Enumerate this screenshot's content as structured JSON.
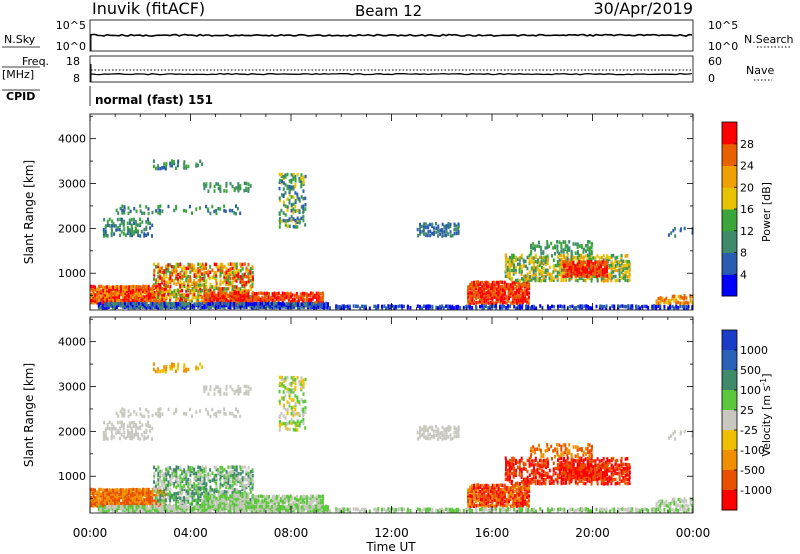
{
  "header": {
    "station": "Inuvik (fitACF)",
    "beam": "Beam 12",
    "date": "30/Apr/2019"
  },
  "panels": {
    "nsky": {
      "label": "N.Sky",
      "left_ticks": [
        "10^5",
        "10^0"
      ],
      "right_ticks": [
        "10^5",
        "10^0"
      ],
      "right_label": "N.Search"
    },
    "freq": {
      "label": "Freq.",
      "unit": "[MHz]",
      "left_ticks": [
        "18",
        "8"
      ],
      "right_ticks": [
        "60",
        "0"
      ],
      "right_label": "Nave"
    },
    "cpid": {
      "label": "CPID",
      "text": "normal (fast) 151"
    }
  },
  "chart_data": [
    {
      "type": "heatmap",
      "name": "power",
      "ylabel": "Slant Range [km]",
      "ylim": [
        180,
        4550
      ],
      "yticks": [
        "1000",
        "2000",
        "3000",
        "4000"
      ],
      "x_ticks": [
        "00:00",
        "04:00",
        "08:00",
        "12:00",
        "16:00",
        "20:00",
        "00:00"
      ],
      "xlim_hours": [
        0,
        24
      ],
      "colorbar": {
        "label": "Power [dB]",
        "ticks": [
          "4",
          "8",
          "12",
          "16",
          "20",
          "24",
          "28"
        ],
        "range": [
          0,
          32
        ],
        "colors": [
          "#0000ff",
          "#2a5db0",
          "#3e8a6a",
          "#3aa63a",
          "#e8c400",
          "#f0a000",
          "#e86000",
          "#ff0000"
        ]
      }
    },
    {
      "type": "heatmap",
      "name": "velocity",
      "ylabel": "Slant Range [km]",
      "ylim": [
        180,
        4550
      ],
      "yticks": [
        "1000",
        "2000",
        "3000",
        "4000"
      ],
      "x_ticks": [
        "00:00",
        "04:00",
        "08:00",
        "12:00",
        "16:00",
        "20:00",
        "00:00"
      ],
      "xlabel": "Time UT",
      "xlim_hours": [
        0,
        24
      ],
      "colorbar": {
        "label": "Velocity",
        "unit": "[m s",
        "unit_sup": "-1",
        "unit_close": "]",
        "ticks": [
          "1000",
          "500",
          "100",
          "25",
          "-25",
          "-100",
          "-500",
          "-1000"
        ],
        "colors": [
          "#1a3cc8",
          "#2a60b8",
          "#3e8a6a",
          "#5ac83a",
          "#c8c8c0",
          "#f0c000",
          "#f09000",
          "#e85000",
          "#ff0000"
        ]
      }
    }
  ]
}
